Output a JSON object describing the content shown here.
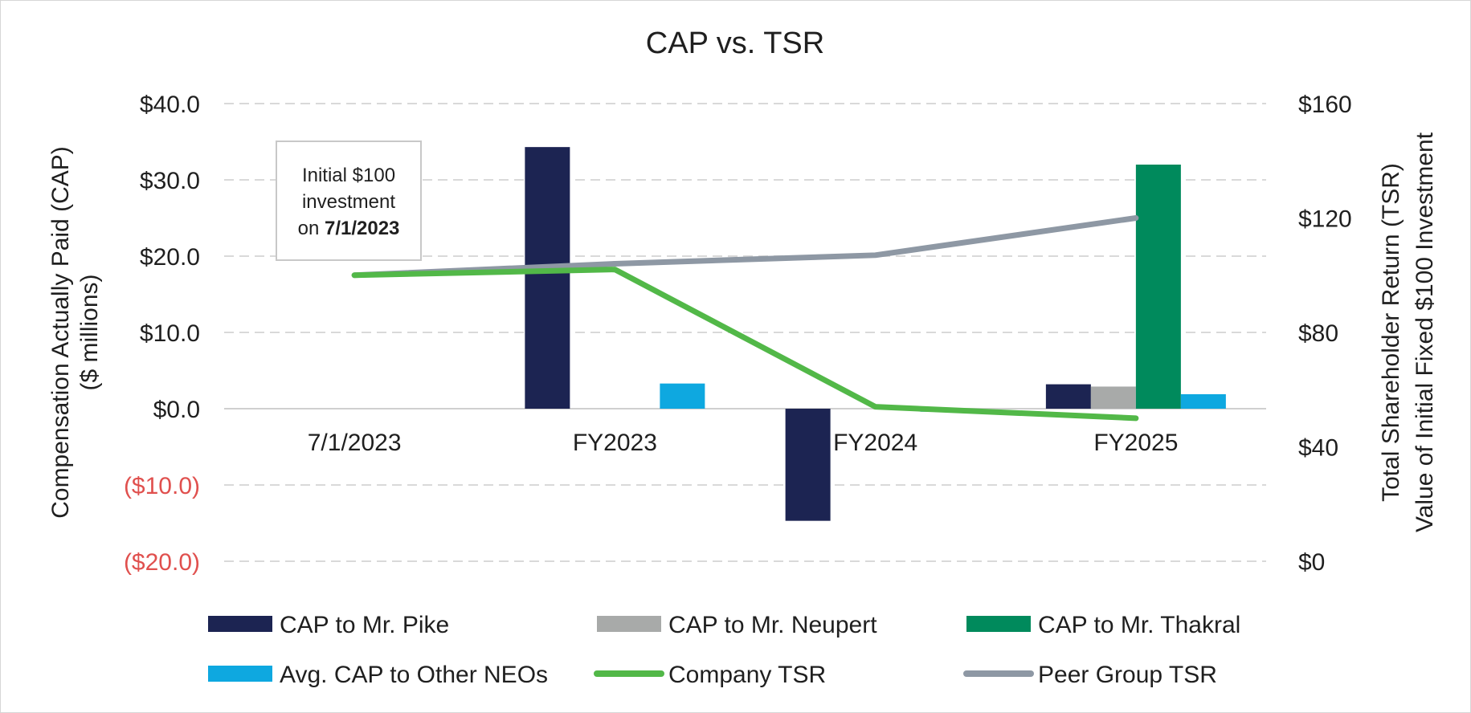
{
  "chart_data": {
    "type": "bar",
    "title": "CAP vs. TSR",
    "categories": [
      "7/1/2023",
      "FY2023",
      "FY2024",
      "FY2025"
    ],
    "y_left": {
      "label_lines": [
        "Compensation Actually Paid (CAP)",
        "($ millions)"
      ],
      "range": [
        -20,
        40
      ],
      "ticks": [
        {
          "value": 40,
          "label": "$40.0"
        },
        {
          "value": 30,
          "label": "$30.0"
        },
        {
          "value": 20,
          "label": "$20.0"
        },
        {
          "value": 10,
          "label": "$10.0"
        },
        {
          "value": 0,
          "label": "$0.0"
        },
        {
          "value": -10,
          "label": "($10.0)"
        },
        {
          "value": -20,
          "label": "($20.0)"
        }
      ],
      "negative_label_color": "#e0504e"
    },
    "y_right": {
      "label_lines": [
        "Total Shareholder Return (TSR)",
        "Value of Initial Fixed $100 Investment"
      ],
      "range": [
        0,
        160
      ],
      "ticks": [
        {
          "value": 160,
          "label": "$160"
        },
        {
          "value": 120,
          "label": "$120"
        },
        {
          "value": 80,
          "label": "$80"
        },
        {
          "value": 40,
          "label": "$40"
        },
        {
          "value": 0,
          "label": "$0"
        }
      ]
    },
    "grid": true,
    "bar_series": [
      {
        "name": "CAP to Mr. Pike",
        "color": "#1c2452",
        "values": [
          null,
          34.3,
          -14.7,
          3.2
        ]
      },
      {
        "name": "CAP to Mr. Neupert",
        "color": "#a8aaa9",
        "values": [
          null,
          null,
          null,
          2.9
        ]
      },
      {
        "name": "CAP to Mr. Thakral",
        "color": "#008a5c",
        "values": [
          null,
          null,
          null,
          32.0
        ]
      },
      {
        "name": "Avg. CAP to Other NEOs",
        "color": "#0ea8e0",
        "values": [
          null,
          3.3,
          -0.4,
          1.9
        ]
      }
    ],
    "line_series": [
      {
        "name": "Company TSR",
        "color": "#52b848",
        "values": [
          100,
          102,
          54,
          50
        ]
      },
      {
        "name": "Peer Group TSR",
        "color": "#8e98a4",
        "values": [
          100,
          104,
          107,
          120
        ]
      }
    ],
    "legend": {
      "placement": "bottom",
      "entries": [
        {
          "name": "CAP to Mr. Pike",
          "color": "#1c2452",
          "kind": "bar"
        },
        {
          "name": "CAP to Mr. Neupert",
          "color": "#a8aaa9",
          "kind": "bar"
        },
        {
          "name": "CAP to Mr. Thakral",
          "color": "#008a5c",
          "kind": "bar"
        },
        {
          "name": "Avg. CAP to Other NEOs",
          "color": "#0ea8e0",
          "kind": "bar"
        },
        {
          "name": "Company TSR",
          "color": "#52b848",
          "kind": "line"
        },
        {
          "name": "Peer Group TSR",
          "color": "#8e98a4",
          "kind": "line"
        }
      ]
    },
    "annotation": {
      "lines": [
        "Initial $100",
        "investment"
      ],
      "last_line_prefix": "on ",
      "last_line_bold": "7/1/2023"
    }
  }
}
